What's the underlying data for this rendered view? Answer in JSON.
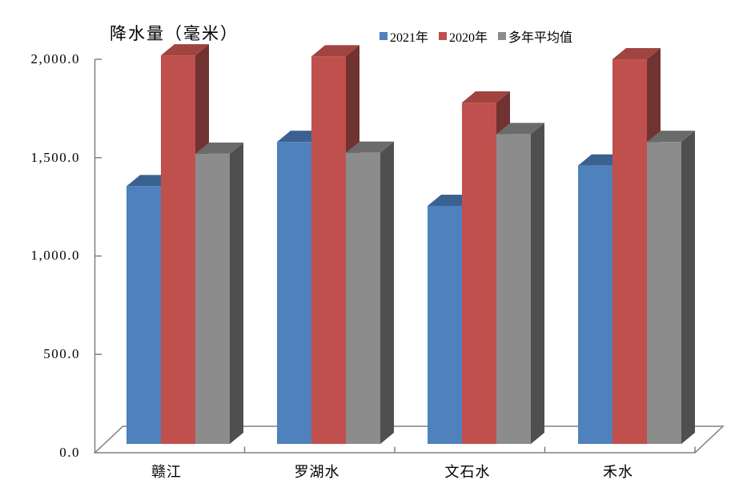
{
  "chart_data": {
    "type": "bar",
    "style": "3d-clustered-column",
    "title": "降水量（毫米）",
    "categories": [
      "赣江",
      "罗湖水",
      "文石水",
      "禾水"
    ],
    "series": [
      {
        "name": "2021年",
        "color": "#4F81BD",
        "top_color": "#3B6191",
        "side_color": "#2E4E74",
        "values": [
          1310,
          1535,
          1210,
          1415
        ]
      },
      {
        "name": "2020年",
        "color": "#C0504D",
        "top_color": "#A04440",
        "side_color": "#703331",
        "values": [
          1975,
          1970,
          1735,
          1955
        ]
      },
      {
        "name": "多年平均值",
        "color": "#8C8C8C",
        "top_color": "#6B6B6B",
        "side_color": "#4F4F4F",
        "values": [
          1475,
          1480,
          1575,
          1535
        ]
      }
    ],
    "ylim": [
      0,
      2000
    ],
    "ytick_step": 500,
    "ytick_labels": [
      "0.0",
      "500.0",
      "1,000.0",
      "1,500.0",
      "2,000.0"
    ],
    "xlabel": "",
    "ylabel": "降水量（毫米）",
    "legend_position": "top",
    "grid": false,
    "axis_color": "#808080",
    "background_color": "#FFFFFF"
  }
}
